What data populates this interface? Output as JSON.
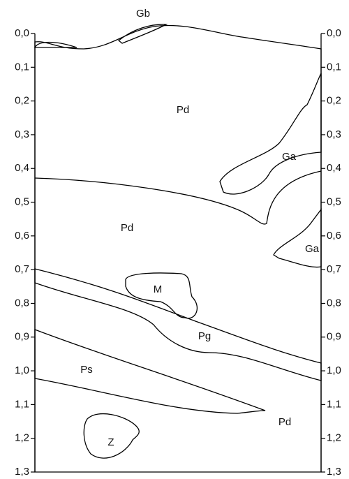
{
  "depth_labels": [
    "0,0",
    "0,1",
    "0,2",
    "0,3",
    "0,4",
    "0,5",
    "0,6",
    "0,7",
    "0,8",
    "0,9",
    "1,0",
    "1,1",
    "1,2",
    "1,3"
  ],
  "regions": [
    {
      "label": "Gb"
    },
    {
      "label": "Pd"
    },
    {
      "label": "Ga"
    },
    {
      "label": "Pd"
    },
    {
      "label": "Ga"
    },
    {
      "label": "M"
    },
    {
      "label": "Pg"
    },
    {
      "label": "Ps"
    },
    {
      "label": "Z"
    },
    {
      "label": "Pd"
    }
  ]
}
